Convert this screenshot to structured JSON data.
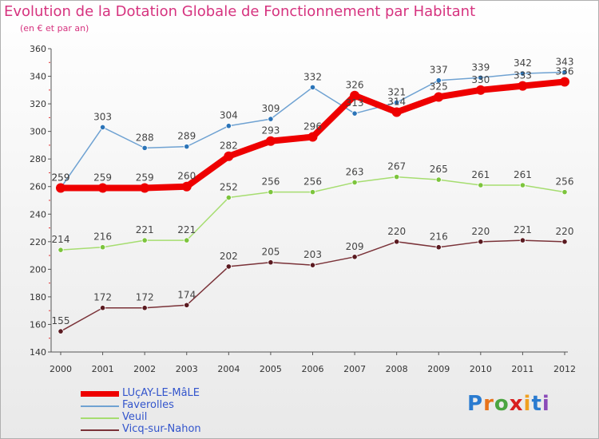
{
  "chart_data": {
    "type": "line",
    "title": "Evolution de la Dotation Globale de Fonctionnement par Habitant",
    "subtitle": "(en € et par an)",
    "xlabel": "",
    "ylabel": "",
    "ylim": [
      140,
      360
    ],
    "yticks": [
      140,
      160,
      180,
      200,
      220,
      240,
      260,
      280,
      300,
      320,
      340,
      360
    ],
    "categories": [
      "2000",
      "2001",
      "2002",
      "2003",
      "2004",
      "2005",
      "2006",
      "2007",
      "2008",
      "2009",
      "2010",
      "2011",
      "2012"
    ],
    "series": [
      {
        "name": "LUçAY-LE-MâLE",
        "color": "#ee0000",
        "values": [
          259,
          259,
          259,
          260,
          282,
          293,
          296,
          326,
          314,
          325,
          330,
          333,
          336
        ]
      },
      {
        "name": "Faverolles",
        "color": "#6fa2d2",
        "values": [
          259,
          303,
          288,
          289,
          304,
          309,
          332,
          313,
          321,
          337,
          339,
          342,
          343
        ]
      },
      {
        "name": "Veuil",
        "color": "#a6dd70",
        "values": [
          214,
          216,
          221,
          221,
          252,
          256,
          256,
          263,
          267,
          265,
          261,
          261,
          256
        ]
      },
      {
        "name": "Vicq-sur-Nahon",
        "color": "#7a3238",
        "values": [
          155,
          172,
          172,
          174,
          202,
          205,
          203,
          209,
          220,
          216,
          220,
          221,
          220
        ]
      }
    ],
    "grid": false,
    "legend_position": "bottom-left"
  },
  "logo": {
    "letters": [
      "P",
      "r",
      "o",
      "x",
      "i",
      "t",
      "i"
    ],
    "colors": [
      "#2a7bd0",
      "#e8731a",
      "#4aa540",
      "#d82020",
      "#f0a020",
      "#2a7bd0",
      "#8a4ab8"
    ]
  }
}
